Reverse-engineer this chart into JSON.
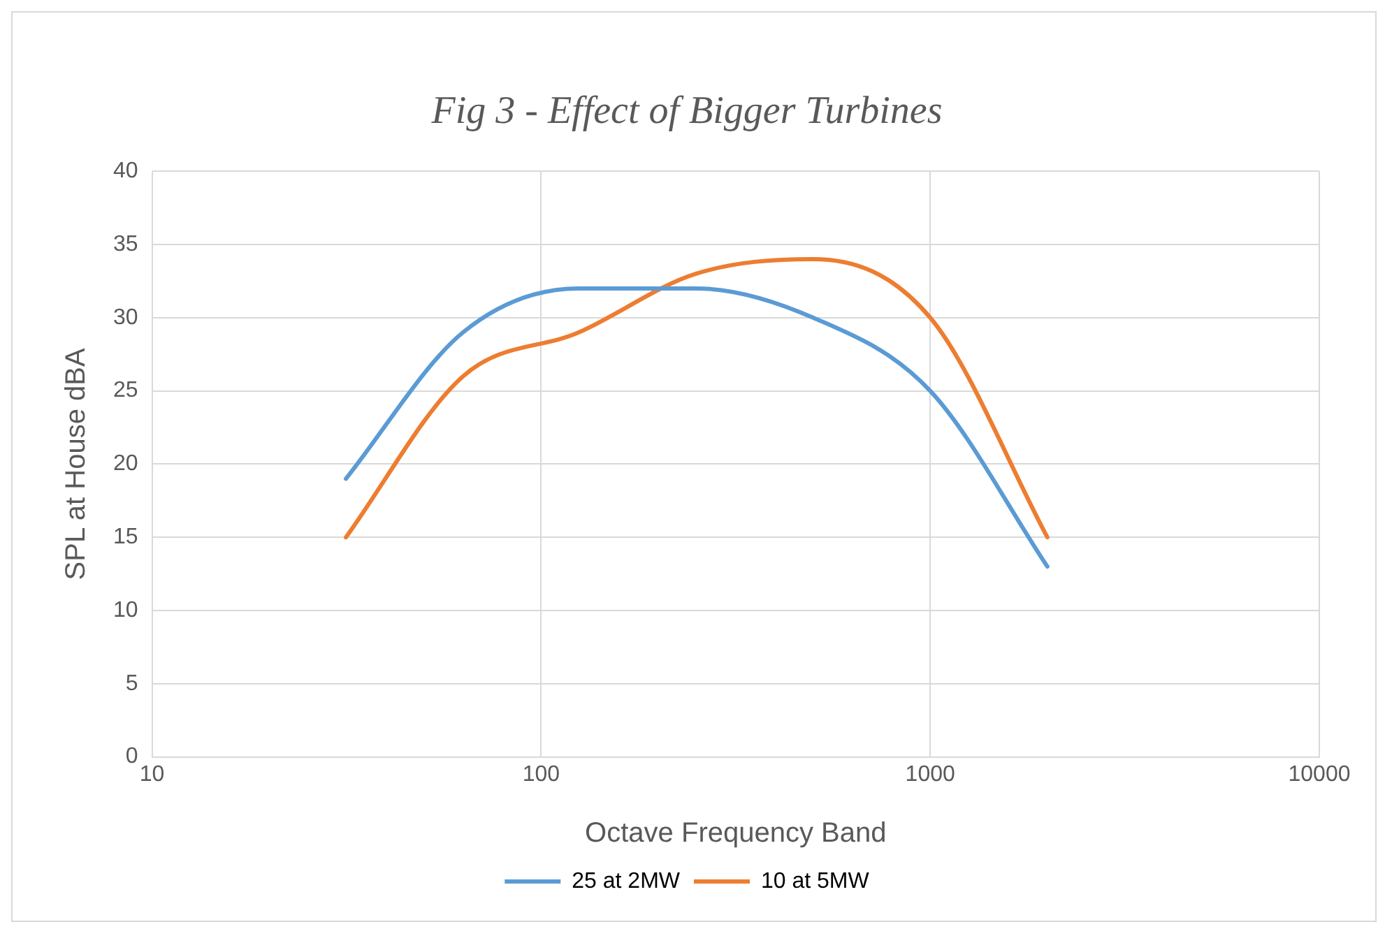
{
  "chart_data": {
    "type": "line",
    "title": "Fig 3 - Effect of Bigger Turbines",
    "xlabel": "Octave Frequency Band",
    "ylabel": "SPL at House dBA",
    "x": [
      31.5,
      63,
      125,
      250,
      500,
      1000,
      2000
    ],
    "series": [
      {
        "name": "25 at 2MW",
        "color": "#5b9bd5",
        "values": [
          19,
          29,
          32,
          32,
          30,
          25,
          13
        ]
      },
      {
        "name": "10 at 5MW",
        "color": "#ed7d31",
        "values": [
          15,
          26,
          29,
          33,
          34,
          30,
          15
        ]
      }
    ],
    "log": "x",
    "xlim": [
      10,
      10000
    ],
    "xticks": [
      10,
      100,
      1000,
      10000
    ],
    "ylim": [
      0,
      40
    ],
    "yticks": [
      0,
      5,
      10,
      15,
      20,
      25,
      30,
      35,
      40
    ],
    "grid": true,
    "legend": "bottom",
    "marker": "none",
    "line_style": "solid"
  }
}
